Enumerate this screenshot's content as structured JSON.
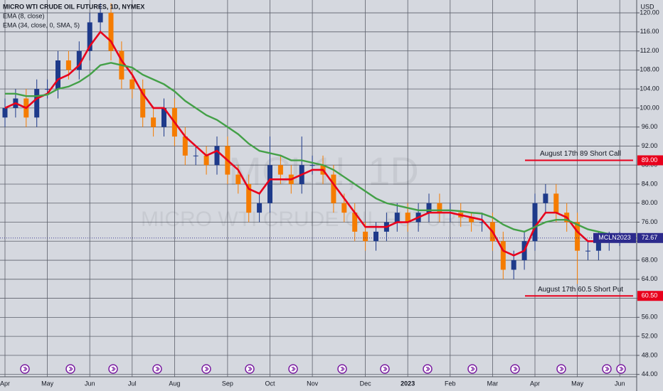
{
  "chart_data": {
    "type": "candlestick",
    "title": "MICRO WTI CRUDE OIL FUTURES, 1D, NYMEX",
    "watermark_symbol": "MCL1!, 1D",
    "watermark_name": "MICRO WTI CRUDE OIL FUTURES",
    "currency": "USD",
    "categories": [
      "Apr",
      null,
      null,
      null,
      "May",
      null,
      null,
      null,
      "Jun",
      null,
      null,
      null,
      "Jul",
      null,
      null,
      null,
      "Aug",
      null,
      null,
      null,
      null,
      "Sep",
      null,
      null,
      null,
      "Oct",
      null,
      null,
      null,
      "Nov",
      null,
      null,
      null,
      null,
      "Dec",
      null,
      null,
      null,
      "2023",
      null,
      null,
      null,
      "Feb",
      null,
      null,
      null,
      "Mar",
      null,
      null,
      null,
      "Apr",
      null,
      null,
      null,
      "May",
      null,
      null,
      null,
      "Jun"
    ],
    "open": [
      98,
      100,
      102,
      98,
      104,
      104,
      110,
      108,
      112,
      118,
      120,
      112,
      106,
      104,
      98,
      96,
      100,
      94,
      90,
      90,
      88,
      92,
      86,
      84,
      78,
      80,
      88,
      86,
      84,
      88,
      88,
      86,
      80,
      78,
      74,
      72,
      74,
      76,
      78,
      76,
      78,
      80,
      78,
      78,
      77,
      76,
      76,
      72,
      66,
      68,
      72,
      80,
      82,
      78,
      76,
      70,
      70,
      72,
      72
    ],
    "high": [
      102,
      104,
      104,
      106,
      106,
      112,
      112,
      114,
      120,
      122,
      122,
      114,
      108,
      106,
      100,
      102,
      102,
      96,
      92,
      92,
      94,
      94,
      88,
      86,
      82,
      94,
      90,
      88,
      94,
      90,
      90,
      88,
      82,
      80,
      76,
      76,
      78,
      80,
      80,
      80,
      82,
      82,
      80,
      80,
      78,
      78,
      78,
      74,
      70,
      74,
      82,
      84,
      84,
      80,
      78,
      72,
      74,
      74,
      74
    ],
    "low": [
      96,
      98,
      96,
      96,
      102,
      102,
      106,
      106,
      110,
      116,
      110,
      104,
      102,
      96,
      94,
      94,
      92,
      88,
      88,
      86,
      86,
      84,
      82,
      76,
      76,
      78,
      84,
      82,
      82,
      86,
      84,
      78,
      76,
      72,
      70,
      70,
      72,
      74,
      74,
      74,
      76,
      76,
      76,
      75,
      74,
      74,
      70,
      64,
      64,
      66,
      70,
      78,
      76,
      74,
      63,
      68,
      68,
      70,
      71
    ],
    "close": [
      100,
      102,
      98,
      104,
      104,
      110,
      108,
      112,
      118,
      120,
      112,
      106,
      104,
      98,
      96,
      100,
      94,
      90,
      90,
      88,
      92,
      86,
      84,
      78,
      80,
      88,
      86,
      84,
      88,
      88,
      86,
      80,
      78,
      74,
      72,
      74,
      76,
      78,
      76,
      78,
      80,
      78,
      78,
      77,
      76,
      76,
      72,
      66,
      68,
      72,
      80,
      82,
      78,
      76,
      70,
      70,
      72,
      72,
      72.67
    ],
    "up_color": "#1e3a8a",
    "down_color": "#f57c00",
    "series": [
      {
        "name": "EMA (8, close)",
        "color": "#e8001c",
        "values": [
          100,
          101,
          100,
          102,
          103,
          106,
          107,
          109,
          113,
          116,
          114,
          110,
          107,
          103,
          100,
          100,
          97,
          94,
          92,
          90,
          91,
          89,
          87,
          83,
          82,
          85,
          85,
          85,
          86,
          87,
          87,
          84,
          81,
          78,
          75,
          75,
          75,
          76,
          76,
          77,
          78,
          78,
          78,
          77.5,
          77,
          76.5,
          74,
          70,
          69,
          70,
          75,
          78,
          78,
          77,
          74,
          72,
          72,
          72,
          72.3
        ]
      },
      {
        "name": "EMA (34, close, 0, SMA, 5)",
        "color": "#43a047",
        "values": [
          103,
          103,
          102.5,
          102.5,
          102.8,
          104,
          104.5,
          105.5,
          107,
          109,
          109.5,
          109,
          108.5,
          107,
          106,
          105,
          103.5,
          101.5,
          100,
          98.5,
          97.5,
          96,
          94.5,
          92.5,
          91,
          90.5,
          90,
          89,
          89,
          88.5,
          88,
          87,
          85.5,
          84,
          82.5,
          81,
          80,
          79.5,
          79,
          78.5,
          78.5,
          78.5,
          78.5,
          78.3,
          78,
          77.8,
          77,
          75.5,
          74.5,
          74,
          75,
          76,
          76.5,
          76.5,
          75.5,
          74.5,
          74,
          73.5,
          73.2
        ]
      }
    ],
    "ylim": [
      43.5,
      122.7
    ],
    "yticks": [
      {
        "value": 44,
        "label": "44.00"
      },
      {
        "value": 48,
        "label": "48.00"
      },
      {
        "value": 52,
        "label": "52.00"
      },
      {
        "value": 56,
        "label": "56.00"
      },
      {
        "value": 60,
        "label": "60.00"
      },
      {
        "value": 64,
        "label": "64.00"
      },
      {
        "value": 68,
        "label": "68.00"
      },
      {
        "value": 72,
        "label": "72.00"
      },
      {
        "value": 76,
        "label": "76.00"
      },
      {
        "value": 80,
        "label": "80.00"
      },
      {
        "value": 84,
        "label": "84.00"
      },
      {
        "value": 88,
        "label": "88.00"
      },
      {
        "value": 92,
        "label": "92.00"
      },
      {
        "value": 96,
        "label": "96.00"
      },
      {
        "value": 100,
        "label": "100.00"
      },
      {
        "value": 104,
        "label": "104.00"
      },
      {
        "value": 108,
        "label": "108.00"
      },
      {
        "value": 112,
        "label": "112.00"
      },
      {
        "value": 116,
        "label": "116.00"
      },
      {
        "value": 120,
        "label": "120.00"
      }
    ],
    "grid": true,
    "levels": [
      {
        "text": "August 17th 89 Short Call",
        "value": 89,
        "label": "89.00",
        "color": "#e8001c"
      },
      {
        "text": "August 17th 60.5 Short Put",
        "value": 60.5,
        "label": "60.50",
        "color": "#e8001c"
      }
    ],
    "last_price": {
      "symbol": "MCLN2023",
      "value": 72.67,
      "label": "72.67",
      "color": "#2c2a8c"
    }
  }
}
